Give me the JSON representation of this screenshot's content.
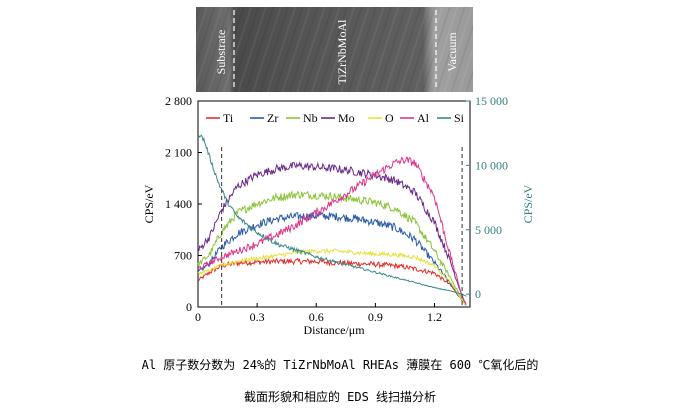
{
  "sem_image": {
    "region_labels": [
      "Substrate",
      "TiZrNbMoAl",
      "Vacuum"
    ]
  },
  "caption": {
    "line1": "Al 原子数分数为 24%的 TiZrNbMoAl RHEAs 薄膜在 600 ℃氧化后的",
    "line2": "截面形貌和相应的 EDS 线扫描分析"
  },
  "chart_data": {
    "type": "line",
    "xlabel": "Distance/μm",
    "ylabel_left": "CPS/eV",
    "ylabel_right": "CPS/eV",
    "xlim": [
      0,
      1.38
    ],
    "ylim_left": [
      0,
      2800
    ],
    "ylim_right": [
      -1000,
      15000
    ],
    "x_ticks": [
      "0",
      "0.3",
      "0.6",
      "0.9",
      "1.2"
    ],
    "x_tick_values": [
      0,
      0.3,
      0.6,
      0.9,
      1.2
    ],
    "y_ticks_left": [
      "0",
      "700",
      "1 400",
      "2 100",
      "2 800"
    ],
    "y_tick_values_left": [
      0,
      700,
      1400,
      2100,
      2800
    ],
    "y_ticks_right": [
      "0",
      "5 000",
      "10 000",
      "15 000"
    ],
    "y_tick_values_right": [
      0,
      5000,
      10000,
      15000
    ],
    "boundary_lines_x": [
      0.12,
      1.34
    ],
    "legend_position": "top",
    "colors": {
      "Ti": "#e0302c",
      "Zr": "#2a5aa6",
      "Nb": "#8cc43c",
      "Mo": "#6a2a8a",
      "O": "#e6e23a",
      "Al": "#e0358a",
      "Si": "#3c8a8a",
      "axis_right": "#2f7f7f"
    },
    "series": [
      {
        "name": "Ti",
        "axis": "left",
        "x": [
          0,
          0.06,
          0.12,
          0.2,
          0.3,
          0.4,
          0.5,
          0.6,
          0.7,
          0.8,
          0.9,
          1.0,
          1.1,
          1.2,
          1.28,
          1.34,
          1.36
        ],
        "y": [
          360,
          470,
          560,
          600,
          610,
          620,
          620,
          620,
          600,
          590,
          580,
          560,
          520,
          460,
          300,
          90,
          20
        ]
      },
      {
        "name": "Zr",
        "axis": "left",
        "x": [
          0,
          0.06,
          0.12,
          0.2,
          0.3,
          0.4,
          0.5,
          0.6,
          0.7,
          0.8,
          0.9,
          1.0,
          1.1,
          1.2,
          1.28,
          1.34,
          1.36
        ],
        "y": [
          470,
          600,
          820,
          1000,
          1120,
          1200,
          1230,
          1240,
          1230,
          1200,
          1150,
          1080,
          920,
          600,
          320,
          90,
          20
        ]
      },
      {
        "name": "Nb",
        "axis": "left",
        "x": [
          0,
          0.06,
          0.12,
          0.2,
          0.3,
          0.4,
          0.5,
          0.6,
          0.7,
          0.8,
          0.9,
          1.0,
          1.1,
          1.2,
          1.28,
          1.34,
          1.36
        ],
        "y": [
          570,
          720,
          1020,
          1280,
          1410,
          1490,
          1530,
          1520,
          1500,
          1460,
          1420,
          1340,
          1150,
          760,
          400,
          110,
          20
        ]
      },
      {
        "name": "Mo",
        "axis": "left",
        "x": [
          0,
          0.06,
          0.12,
          0.2,
          0.3,
          0.4,
          0.5,
          0.6,
          0.7,
          0.8,
          0.9,
          1.0,
          1.1,
          1.2,
          1.28,
          1.34,
          1.36
        ],
        "y": [
          760,
          960,
          1320,
          1640,
          1800,
          1880,
          1920,
          1900,
          1880,
          1840,
          1790,
          1720,
          1560,
          1150,
          620,
          150,
          30
        ]
      },
      {
        "name": "O",
        "axis": "left",
        "x": [
          0,
          0.06,
          0.12,
          0.2,
          0.3,
          0.4,
          0.5,
          0.6,
          0.7,
          0.8,
          0.9,
          1.0,
          1.1,
          1.2,
          1.28,
          1.34,
          1.36
        ],
        "y": [
          450,
          500,
          570,
          620,
          660,
          700,
          740,
          760,
          760,
          740,
          720,
          710,
          680,
          560,
          340,
          90,
          20
        ]
      },
      {
        "name": "Al",
        "axis": "left",
        "x": [
          0,
          0.06,
          0.12,
          0.2,
          0.3,
          0.4,
          0.5,
          0.6,
          0.7,
          0.8,
          0.9,
          1.0,
          1.05,
          1.1,
          1.2,
          1.28,
          1.34,
          1.36
        ],
        "y": [
          520,
          600,
          680,
          760,
          860,
          980,
          1120,
          1280,
          1450,
          1620,
          1800,
          1960,
          2000,
          1960,
          1500,
          700,
          150,
          30
        ]
      },
      {
        "name": "Si",
        "axis": "right",
        "x": [
          0,
          0.03,
          0.06,
          0.1,
          0.15,
          0.2,
          0.3,
          0.4,
          0.5,
          0.6,
          0.7,
          0.8,
          0.9,
          1.0,
          1.1,
          1.2,
          1.28,
          1.34,
          1.36
        ],
        "y": [
          12500,
          12000,
          10600,
          8800,
          7100,
          6000,
          4800,
          3900,
          3400,
          2900,
          2500,
          2100,
          1700,
          1300,
          900,
          500,
          250,
          0,
          -150
        ]
      }
    ]
  }
}
